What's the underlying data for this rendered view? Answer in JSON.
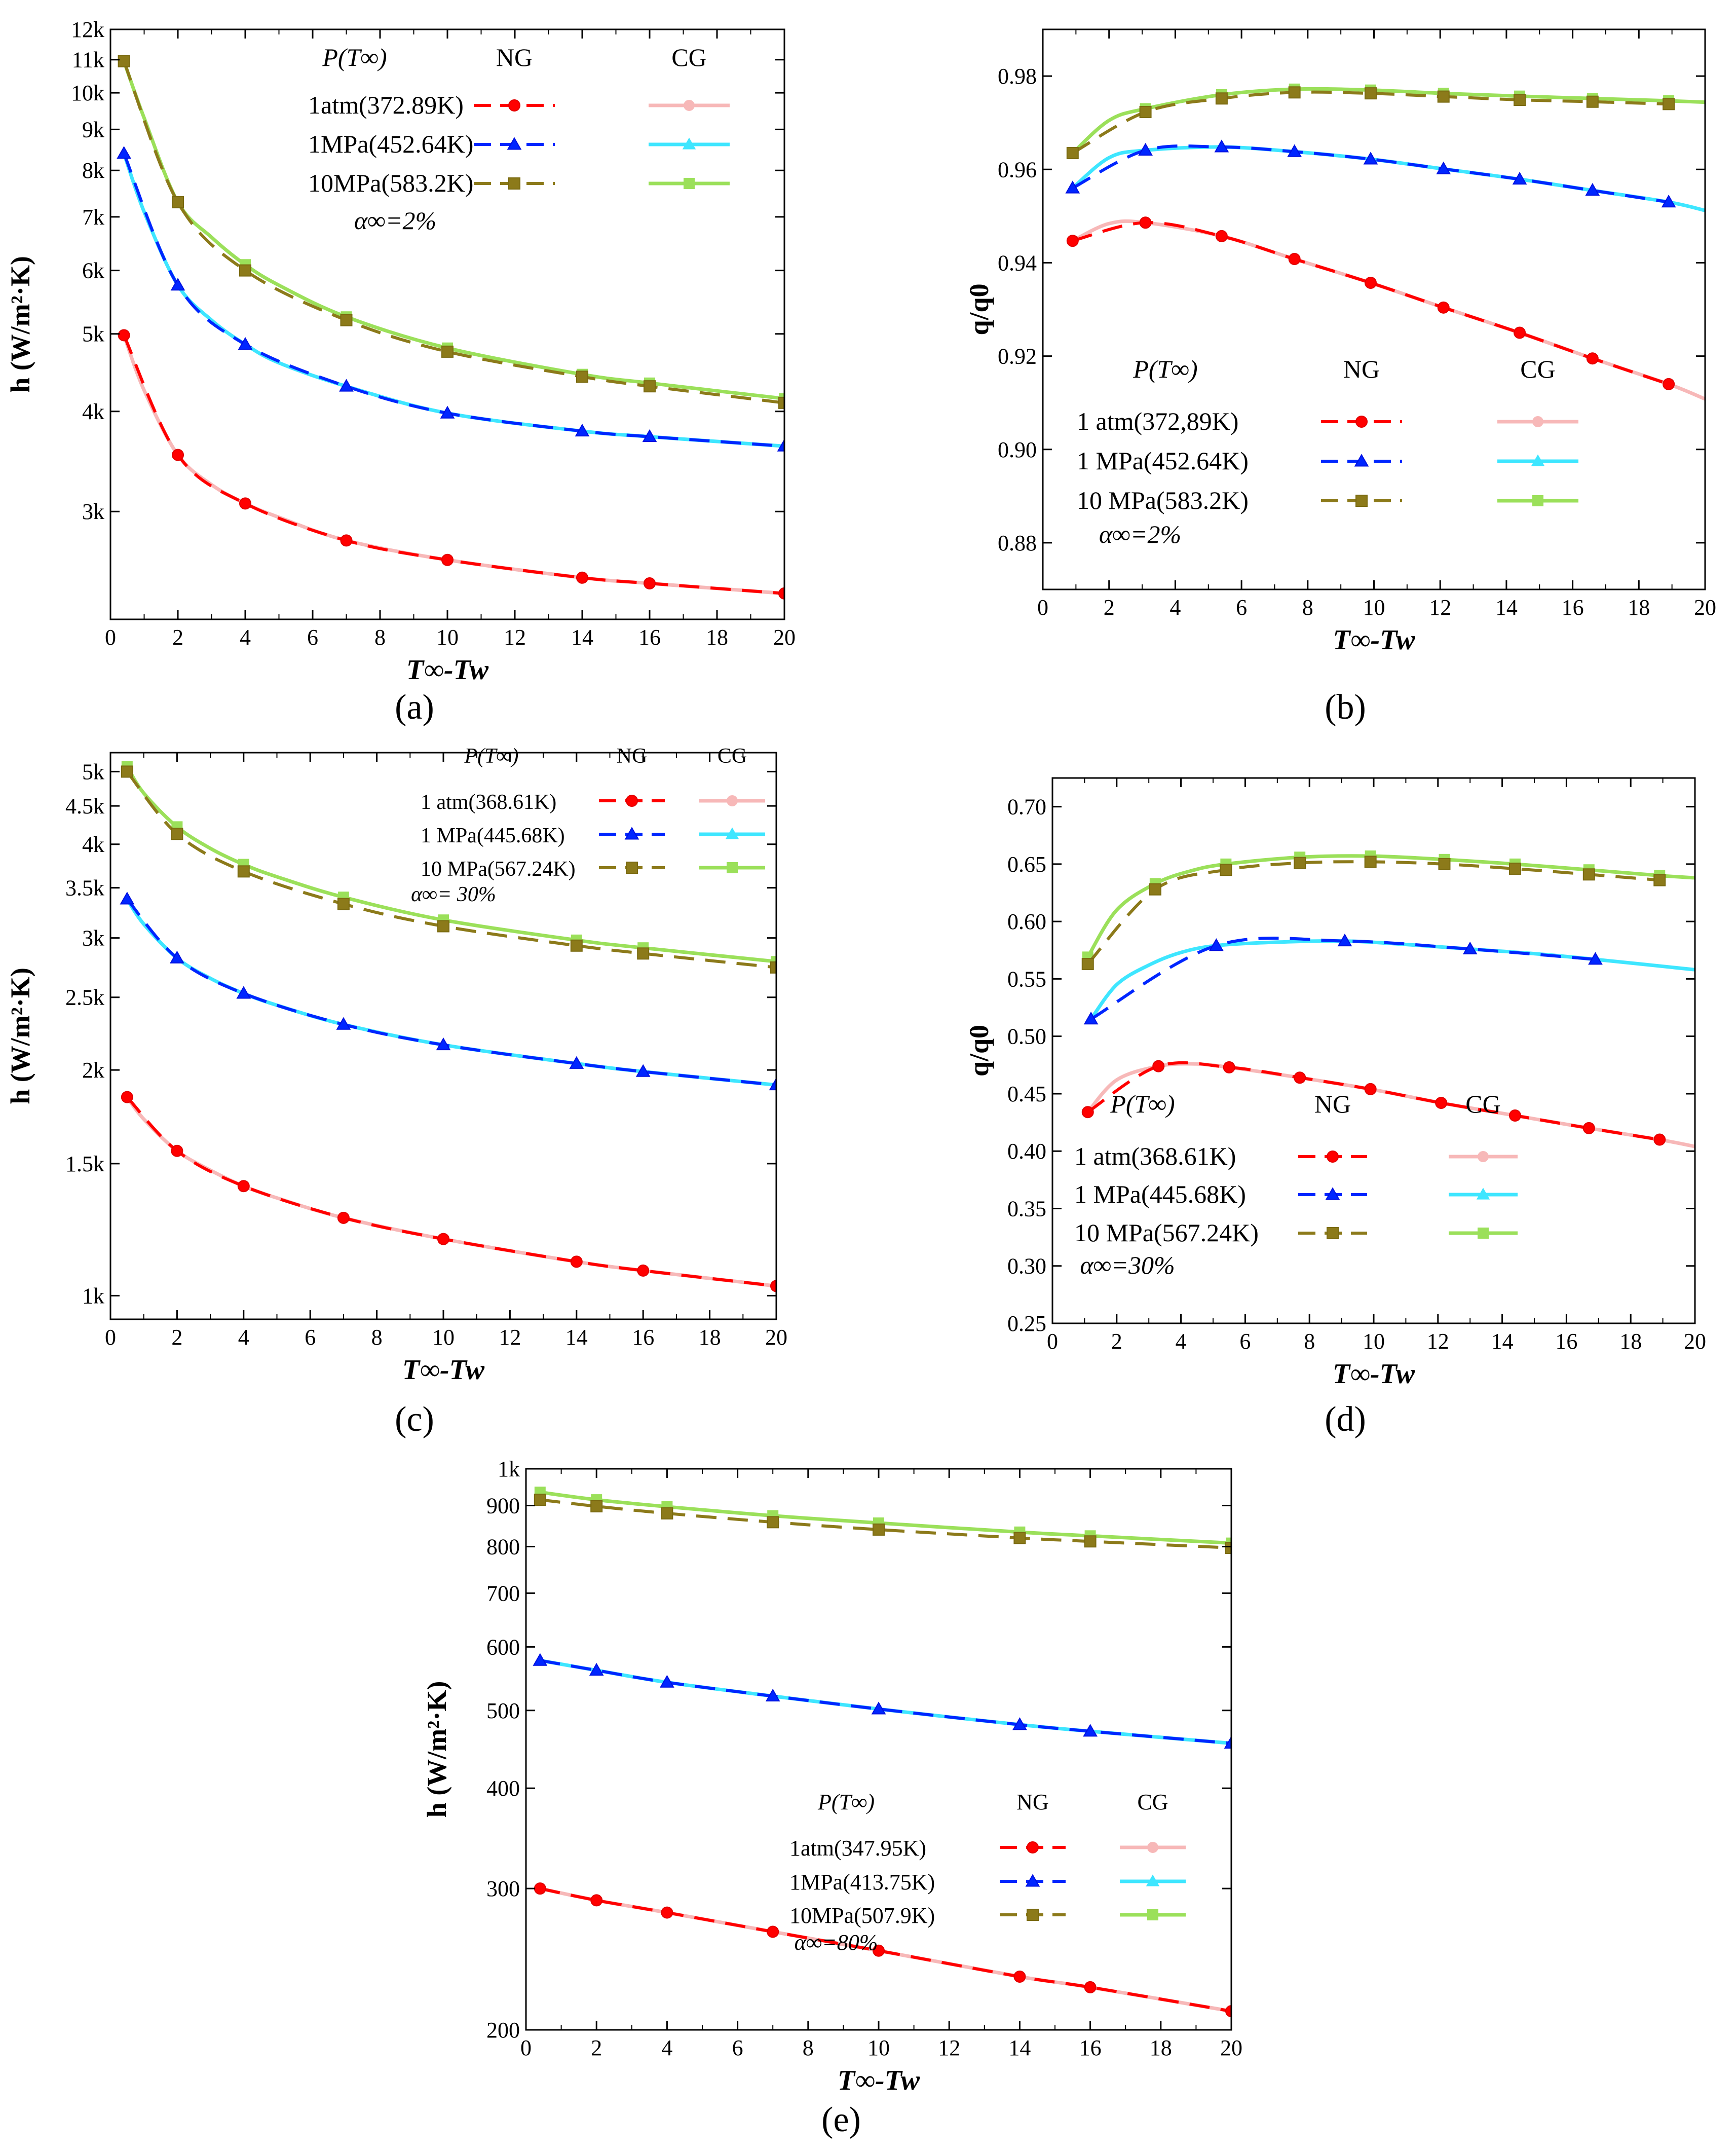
{
  "figure": {
    "panel_labels": [
      "(a)",
      "(b)",
      "(c)",
      "(d)",
      "(e)"
    ]
  },
  "legend_headers": {
    "param": "P(T∞)",
    "ng": "NG",
    "cg": "CG"
  },
  "colors": {
    "ng": [
      "#ff0000",
      "#0026ff",
      "#8c7a1a"
    ],
    "ng_edge": [
      "#e00000",
      "#0010e0",
      "#7a6a10"
    ],
    "cg": [
      "#f7b8b8",
      "#3ee6ff",
      "#9be05a"
    ]
  },
  "chart_data": [
    {
      "id": "a",
      "type": "line",
      "ylog": true,
      "title": "",
      "xlabel": "T∞-Tw",
      "ylabel": "h (W/m²·K)",
      "xlim": [
        0,
        20
      ],
      "ylim": [
        2200,
        12000
      ],
      "xticks": [
        0,
        2,
        4,
        6,
        8,
        10,
        12,
        14,
        16,
        18,
        20
      ],
      "yticks": [
        3000,
        4000,
        5000,
        6000,
        7000,
        8000,
        9000,
        10000,
        11000,
        12000
      ],
      "ytick_labels": [
        "3k",
        "4k",
        "5k",
        "6k",
        "7k",
        "8k",
        "9k",
        "10k",
        "11k",
        "12k"
      ],
      "legend": {
        "entries": [
          "1atm(372.89K)",
          "1MPa(452.64K)",
          "10MPa(583.2K)"
        ],
        "alpha_label": "α∞=2%"
      },
      "series": [
        {
          "name": "1atm(372.89K)",
          "marker": "circle",
          "ng_x": [
            0.4,
            2,
            4,
            7,
            10,
            14,
            16,
            20
          ],
          "ng_y": [
            4980,
            3530,
            3070,
            2760,
            2610,
            2480,
            2440,
            2370
          ],
          "cg_x": [
            0.4,
            1,
            2,
            3,
            4,
            5,
            7,
            10,
            14,
            16,
            20
          ],
          "cg_y": [
            4980,
            4250,
            3530,
            3240,
            3070,
            2950,
            2760,
            2610,
            2480,
            2440,
            2370
          ]
        },
        {
          "name": "1MPa(452.64K)",
          "marker": "triangle",
          "ng_x": [
            0.4,
            2,
            4,
            7,
            10,
            14,
            16,
            20
          ],
          "ng_y": [
            8400,
            5750,
            4850,
            4300,
            3980,
            3780,
            3720,
            3620
          ],
          "cg_x": [
            0.4,
            1,
            2,
            3,
            4,
            5,
            7,
            10,
            14,
            16,
            20
          ],
          "cg_y": [
            8400,
            7100,
            5750,
            5200,
            4850,
            4600,
            4300,
            3980,
            3780,
            3720,
            3620
          ]
        },
        {
          "name": "10MPa(583.2K)",
          "marker": "square",
          "ng_x": [
            0.4,
            2,
            4,
            7,
            10,
            14,
            16,
            20
          ],
          "ng_y": [
            10950,
            7300,
            6000,
            5200,
            4750,
            4420,
            4300,
            4100
          ],
          "cg_x": [
            0.4,
            1,
            2,
            3,
            4,
            5,
            7,
            10,
            14,
            16,
            20
          ],
          "cg_y": [
            10950,
            9300,
            7300,
            6600,
            6100,
            5750,
            5250,
            4800,
            4450,
            4340,
            4150
          ]
        }
      ]
    },
    {
      "id": "b",
      "type": "line",
      "ylog": false,
      "title": "",
      "xlabel": "T∞-Tw",
      "ylabel": "q/q0",
      "xlim": [
        0,
        20
      ],
      "ylim": [
        0.87,
        0.99
      ],
      "xticks": [
        0,
        2,
        4,
        6,
        8,
        10,
        12,
        14,
        16,
        18,
        20
      ],
      "yticks": [
        0.88,
        0.9,
        0.92,
        0.94,
        0.96,
        0.98
      ],
      "ytick_labels": [
        "0.88",
        "0.90",
        "0.92",
        "0.94",
        "0.96",
        "0.98"
      ],
      "legend": {
        "entries": [
          "1 atm(372,89K)",
          "1 MPa(452.64K)",
          "10 MPa(583.2K)"
        ],
        "alpha_label": "α∞=2%"
      },
      "series": [
        {
          "name": "1 atm(372,89K)",
          "marker": "circle",
          "ng_x": [
            0.9,
            3.1,
            5.4,
            7.6,
            9.9,
            12.1,
            14.4,
            16.6,
            18.9
          ],
          "ng_y": [
            0.9447,
            0.9486,
            0.9457,
            0.9408,
            0.9357,
            0.9304,
            0.925,
            0.9195,
            0.914
          ],
          "cg_x": [
            0.9,
            2,
            3.1,
            5.4,
            7.6,
            9.9,
            12.1,
            14.4,
            16.6,
            18.9,
            20
          ],
          "cg_y": [
            0.9447,
            0.9484,
            0.9486,
            0.9457,
            0.9408,
            0.9357,
            0.9304,
            0.925,
            0.9195,
            0.914,
            0.9108
          ]
        },
        {
          "name": "1 MPa(452.64K)",
          "marker": "triangle",
          "ng_x": [
            0.9,
            3.1,
            5.4,
            7.6,
            9.9,
            12.1,
            14.4,
            16.6,
            18.9
          ],
          "ng_y": [
            0.956,
            0.9641,
            0.9648,
            0.9638,
            0.9622,
            0.9601,
            0.9579,
            0.9555,
            0.953
          ],
          "cg_x": [
            0.9,
            2,
            3.1,
            5.4,
            7.6,
            9.9,
            12.1,
            14.4,
            16.6,
            18.9,
            20
          ],
          "cg_y": [
            0.956,
            0.9625,
            0.9641,
            0.9648,
            0.9638,
            0.9622,
            0.9601,
            0.9579,
            0.9555,
            0.953,
            0.9512
          ]
        },
        {
          "name": "10 MPa(583.2K)",
          "marker": "square",
          "ng_x": [
            0.9,
            3.1,
            5.4,
            7.6,
            9.9,
            12.1,
            14.4,
            16.6,
            18.9
          ],
          "ng_y": [
            0.9635,
            0.9723,
            0.9752,
            0.9765,
            0.9763,
            0.9756,
            0.9749,
            0.9745,
            0.974
          ],
          "cg_x": [
            0.9,
            2,
            3.1,
            5.4,
            7.6,
            9.9,
            12.1,
            14.4,
            16.6,
            18.9,
            20
          ],
          "cg_y": [
            0.9635,
            0.9705,
            0.973,
            0.976,
            0.9772,
            0.977,
            0.9763,
            0.9757,
            0.9752,
            0.9747,
            0.9744
          ]
        }
      ]
    },
    {
      "id": "c",
      "type": "line",
      "ylog": true,
      "title": "",
      "xlabel": "T∞-Tw",
      "ylabel": "h (W/m²·K)",
      "xlim": [
        0,
        20
      ],
      "ylim": [
        930,
        5300
      ],
      "xticks": [
        0,
        2,
        4,
        6,
        8,
        10,
        12,
        14,
        16,
        18,
        20
      ],
      "yticks": [
        1000,
        1500,
        2000,
        2500,
        3000,
        3500,
        4000,
        4500,
        5000
      ],
      "ytick_labels": [
        "1k",
        "1.5k",
        "2k",
        "2.5k",
        "3k",
        "3.5k",
        "4k",
        "4.5k",
        "5k"
      ],
      "legend": {
        "entries": [
          "1 atm(368.61K)",
          "1 MPa(445.68K)",
          "10 MPa(567.24K)"
        ],
        "alpha_label": "α∞= 30%"
      },
      "series": [
        {
          "name": "1 atm(368.61K)",
          "marker": "circle",
          "ng_x": [
            0.5,
            2,
            4,
            7,
            10,
            14,
            16,
            20
          ],
          "ng_y": [
            1840,
            1560,
            1400,
            1270,
            1190,
            1110,
            1080,
            1030
          ],
          "cg_x": [
            0.5,
            1,
            2,
            3,
            4,
            5,
            7,
            10,
            14,
            16,
            20
          ],
          "cg_y": [
            1840,
            1720,
            1560,
            1470,
            1400,
            1350,
            1270,
            1190,
            1110,
            1080,
            1030
          ]
        },
        {
          "name": "1 MPa(445.68K)",
          "marker": "triangle",
          "ng_x": [
            0.5,
            2,
            4,
            7,
            10,
            14,
            16,
            20
          ],
          "ng_y": [
            3380,
            2820,
            2530,
            2300,
            2160,
            2040,
            1990,
            1910
          ],
          "cg_x": [
            0.5,
            1,
            2,
            3,
            4,
            5,
            7,
            10,
            14,
            16,
            20
          ],
          "cg_y": [
            3380,
            3130,
            2820,
            2650,
            2530,
            2440,
            2300,
            2160,
            2040,
            1990,
            1910
          ]
        },
        {
          "name": "10 MPa(567.24K)",
          "marker": "square",
          "ng_x": [
            0.5,
            2,
            4,
            7,
            10,
            14,
            16,
            20
          ],
          "ng_y": [
            5000,
            4130,
            3680,
            3330,
            3110,
            2930,
            2860,
            2740
          ],
          "cg_x": [
            0.5,
            1,
            2,
            3,
            4,
            5,
            7,
            10,
            14,
            16,
            20
          ],
          "cg_y": [
            5080,
            4680,
            4220,
            3950,
            3760,
            3620,
            3400,
            3170,
            2980,
            2910,
            2790
          ]
        }
      ]
    },
    {
      "id": "d",
      "type": "line",
      "ylog": false,
      "title": "",
      "xlabel": "T∞-Tw",
      "ylabel": "q/q0",
      "xlim": [
        0,
        20
      ],
      "ylim": [
        0.25,
        0.725
      ],
      "xticks": [
        0,
        2,
        4,
        6,
        8,
        10,
        12,
        14,
        16,
        18,
        20
      ],
      "yticks": [
        0.25,
        0.3,
        0.35,
        0.4,
        0.45,
        0.5,
        0.55,
        0.6,
        0.65,
        0.7
      ],
      "ytick_labels": [
        "0.25",
        "0.30",
        "0.35",
        "0.40",
        "0.45",
        "0.50",
        "0.55",
        "0.60",
        "0.65",
        "0.70"
      ],
      "legend": {
        "entries": [
          "1 atm(368.61K)",
          "1 MPa(445.68K)",
          "10 MPa(567.24K)"
        ],
        "alpha_label": "α∞=30%"
      },
      "series": [
        {
          "name": "1 atm(368.61K)",
          "marker": "circle",
          "ng_x": [
            1.1,
            3.3,
            5.5,
            7.7,
            9.9,
            12.1,
            14.4,
            16.7,
            18.9
          ],
          "ng_y": [
            0.434,
            0.474,
            0.473,
            0.464,
            0.454,
            0.442,
            0.431,
            0.42,
            0.41
          ],
          "cg_x": [
            1.1,
            2,
            3.3,
            4.4,
            5.5,
            7.7,
            9.9,
            12.1,
            14.4,
            16.7,
            18.9,
            20
          ],
          "cg_y": [
            0.434,
            0.462,
            0.474,
            0.476,
            0.473,
            0.464,
            0.454,
            0.442,
            0.431,
            0.42,
            0.41,
            0.404
          ]
        },
        {
          "name": "1 MPa(445.68K)",
          "marker": "triangle",
          "ng_x": [
            1.2,
            5.1,
            9.1,
            13.0,
            16.9
          ],
          "ng_y": [
            0.515,
            0.579,
            0.583,
            0.576,
            0.567
          ],
          "cg_x": [
            1.2,
            2,
            3,
            4,
            5.1,
            7,
            9.1,
            11,
            13.0,
            15,
            16.9,
            20
          ],
          "cg_y": [
            0.515,
            0.545,
            0.562,
            0.573,
            0.579,
            0.582,
            0.583,
            0.58,
            0.576,
            0.572,
            0.567,
            0.558
          ]
        },
        {
          "name": "10 MPa(567.24K)",
          "marker": "square",
          "ng_x": [
            1.1,
            3.2,
            5.4,
            7.7,
            9.9,
            12.2,
            14.4,
            16.7,
            18.9
          ],
          "ng_y": [
            0.563,
            0.628,
            0.645,
            0.651,
            0.652,
            0.65,
            0.646,
            0.641,
            0.636
          ],
          "cg_x": [
            1.1,
            2,
            3.2,
            4.3,
            5.4,
            7.7,
            9.9,
            12.2,
            14.4,
            16.7,
            18.9,
            20
          ],
          "cg_y": [
            0.569,
            0.61,
            0.633,
            0.644,
            0.65,
            0.656,
            0.657,
            0.654,
            0.65,
            0.645,
            0.64,
            0.638
          ]
        }
      ]
    },
    {
      "id": "e",
      "type": "line",
      "ylog": true,
      "title": "",
      "xlabel": "T∞-Tw",
      "ylabel": "h (W/m²·K)",
      "xlim": [
        0,
        20
      ],
      "ylim": [
        200,
        1000
      ],
      "xticks": [
        0,
        2,
        4,
        6,
        8,
        10,
        12,
        14,
        16,
        18,
        20
      ],
      "yticks": [
        200,
        300,
        400,
        500,
        600,
        700,
        800,
        900,
        1000
      ],
      "ytick_labels": [
        "200",
        "300",
        "400",
        "500",
        "600",
        "700",
        "800",
        "900",
        "1k"
      ],
      "legend": {
        "entries": [
          "1atm(347.95K)",
          "1MPa(413.75K)",
          "10MPa(507.9K)"
        ],
        "alpha_label": "α∞=80%"
      },
      "series": [
        {
          "name": "1atm(347.95K)",
          "marker": "circle",
          "ng_x": [
            0.4,
            2,
            4,
            7,
            10,
            14,
            16,
            20
          ],
          "ng_y": [
            300,
            290,
            280,
            265,
            251,
            233,
            226,
            211
          ],
          "cg_x": [
            0.4,
            2,
            4,
            7,
            10,
            14,
            16,
            20
          ],
          "cg_y": [
            300,
            290,
            280,
            265,
            251,
            233,
            226,
            211
          ]
        },
        {
          "name": "1MPa(413.75K)",
          "marker": "triangle",
          "ng_x": [
            0.4,
            2,
            4,
            7,
            10,
            14,
            16,
            20
          ],
          "ng_y": [
            577,
            561,
            542,
            521,
            502,
            480,
            471,
            455
          ],
          "cg_x": [
            0.4,
            2,
            4,
            7,
            10,
            14,
            16,
            20
          ],
          "cg_y": [
            577,
            561,
            542,
            521,
            502,
            480,
            471,
            455
          ]
        },
        {
          "name": "10MPa(507.9K)",
          "marker": "square",
          "ng_x": [
            0.4,
            2,
            4,
            7,
            10,
            14,
            16,
            20
          ],
          "ng_y": [
            915,
            898,
            880,
            858,
            840,
            820,
            812,
            797
          ],
          "cg_x": [
            0.4,
            2,
            4,
            7,
            10,
            14,
            16,
            20
          ],
          "cg_y": [
            935,
            915,
            897,
            874,
            856,
            834,
            825,
            808
          ]
        }
      ]
    }
  ]
}
